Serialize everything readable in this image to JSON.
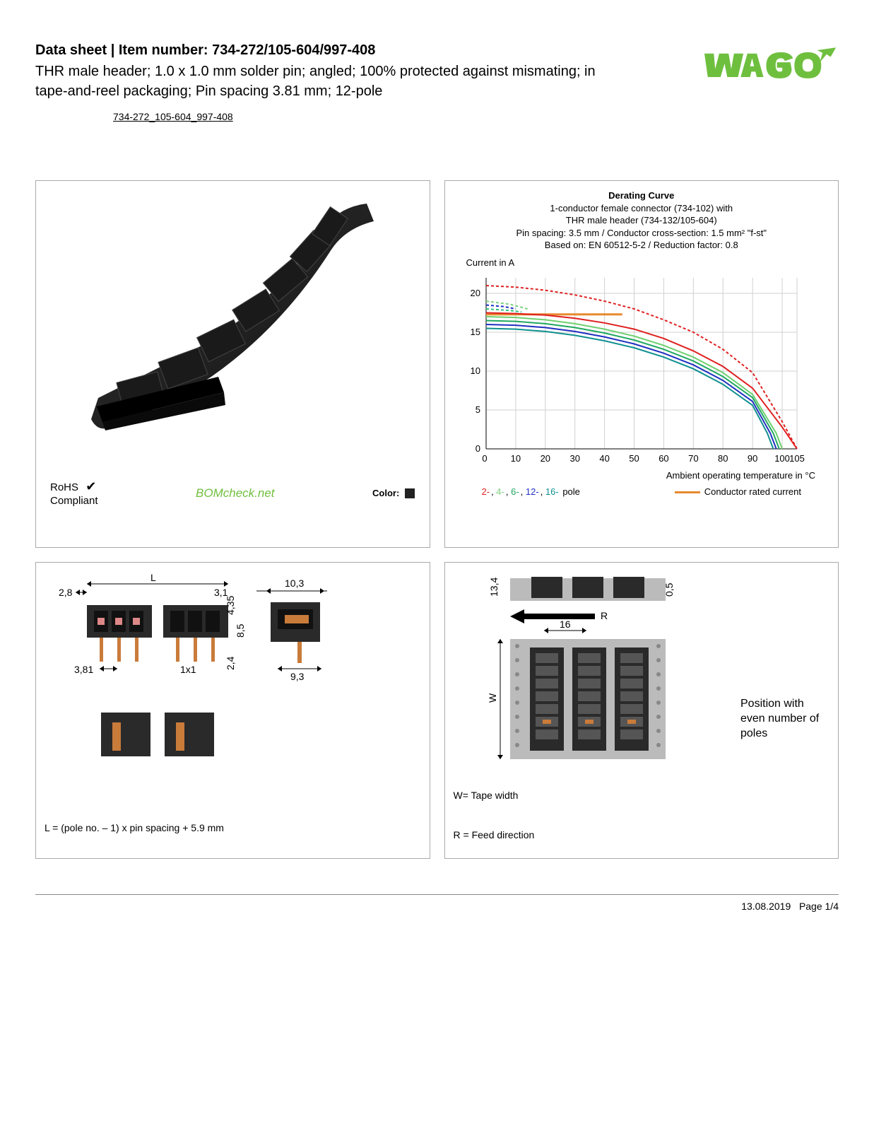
{
  "header": {
    "title_prefix": "Data sheet  |  Item number: ",
    "item_number": "734-272/105-604/997-408",
    "subtitle": "THR male header; 1.0 x 1.0 mm solder pin; angled; 100% protected against mismating; in tape-and-reel packaging; Pin spacing 3.81 mm; 12-pole",
    "part_link": "734-272_105-604_997-408",
    "logo_color": "#6fbf3f"
  },
  "product_panel": {
    "rohs_line1": "RoHS",
    "rohs_line2": "Compliant",
    "bomcheck": "BOMcheck",
    "bomcheck_suffix": ".net",
    "color_label": "Color:",
    "color_hex": "#222222"
  },
  "chart": {
    "title": "Derating Curve",
    "sub1": "1-conductor female connector (734-102) with",
    "sub2": "THR male header (734-132/105-604)",
    "sub3": "Pin spacing: 3.5 mm / Conductor cross-section: 1.5 mm² \"f-st\"",
    "sub4": "Based on: EN 60512-5-2 / Reduction factor: 0.8",
    "y_label": "Current in A",
    "x_label": "Ambient operating temperature in °C",
    "x_ticks": [
      0,
      10,
      20,
      30,
      40,
      50,
      60,
      70,
      80,
      90,
      100,
      105
    ],
    "y_ticks": [
      0,
      5,
      10,
      15,
      20
    ],
    "xlim": [
      0,
      105
    ],
    "ylim": [
      0,
      22
    ],
    "grid_color": "#d0d0d0",
    "background": "#ffffff",
    "series": [
      {
        "name": "2-pole",
        "color": "#e02020",
        "dash": "4,3",
        "points": [
          [
            0,
            21
          ],
          [
            10,
            20.8
          ],
          [
            20,
            20.4
          ],
          [
            30,
            19.8
          ],
          [
            40,
            19
          ],
          [
            50,
            18
          ],
          [
            60,
            16.6
          ],
          [
            70,
            15
          ],
          [
            80,
            12.8
          ],
          [
            90,
            9.8
          ],
          [
            100,
            3.5
          ],
          [
            105,
            0
          ]
        ]
      },
      {
        "name": "2-pole-solid",
        "color": "#e02020",
        "dash": "",
        "points": [
          [
            0,
            17.5
          ],
          [
            10,
            17.4
          ],
          [
            20,
            17.2
          ],
          [
            30,
            16.8
          ],
          [
            40,
            16.2
          ],
          [
            50,
            15.4
          ],
          [
            60,
            14.2
          ],
          [
            70,
            12.6
          ],
          [
            80,
            10.6
          ],
          [
            90,
            7.8
          ],
          [
            100,
            2.8
          ],
          [
            105,
            0
          ]
        ]
      },
      {
        "name": "4-pole",
        "color": "#7fd07f",
        "dash": "4,3",
        "points": [
          [
            0,
            19
          ],
          [
            8,
            18.6
          ],
          [
            14,
            18
          ]
        ]
      },
      {
        "name": "4-pole-solid",
        "color": "#6fd06f",
        "dash": "",
        "points": [
          [
            0,
            17
          ],
          [
            10,
            16.9
          ],
          [
            20,
            16.6
          ],
          [
            30,
            16.1
          ],
          [
            40,
            15.4
          ],
          [
            50,
            14.5
          ],
          [
            60,
            13.3
          ],
          [
            70,
            11.8
          ],
          [
            80,
            9.8
          ],
          [
            90,
            7.0
          ],
          [
            98,
            2
          ],
          [
            100,
            0
          ]
        ]
      },
      {
        "name": "6-pole",
        "color": "#30c080",
        "dash": "4,3",
        "points": [
          [
            0,
            18
          ],
          [
            8,
            17.8
          ],
          [
            12,
            17.6
          ]
        ]
      },
      {
        "name": "6-pole-solid",
        "color": "#20a860",
        "dash": "",
        "points": [
          [
            0,
            16.5
          ],
          [
            10,
            16.4
          ],
          [
            20,
            16.1
          ],
          [
            30,
            15.6
          ],
          [
            40,
            14.9
          ],
          [
            50,
            14
          ],
          [
            60,
            12.8
          ],
          [
            70,
            11.3
          ],
          [
            80,
            9.3
          ],
          [
            90,
            6.6
          ],
          [
            97,
            2
          ],
          [
            99,
            0
          ]
        ]
      },
      {
        "name": "12-pole",
        "color": "#2030c0",
        "dash": "4,3",
        "points": [
          [
            0,
            18.5
          ],
          [
            6,
            18.3
          ],
          [
            10,
            18
          ]
        ]
      },
      {
        "name": "12-pole-solid",
        "color": "#2030c0",
        "dash": "",
        "points": [
          [
            0,
            16
          ],
          [
            10,
            15.9
          ],
          [
            20,
            15.6
          ],
          [
            30,
            15.1
          ],
          [
            40,
            14.4
          ],
          [
            50,
            13.5
          ],
          [
            60,
            12.3
          ],
          [
            70,
            10.8
          ],
          [
            80,
            8.8
          ],
          [
            90,
            6.1
          ],
          [
            96,
            2
          ],
          [
            98,
            0
          ]
        ]
      },
      {
        "name": "16-pole-solid",
        "color": "#109090",
        "dash": "",
        "points": [
          [
            0,
            15.5
          ],
          [
            10,
            15.4
          ],
          [
            20,
            15.1
          ],
          [
            30,
            14.6
          ],
          [
            40,
            13.9
          ],
          [
            50,
            13
          ],
          [
            60,
            11.8
          ],
          [
            70,
            10.3
          ],
          [
            80,
            8.3
          ],
          [
            90,
            5.6
          ],
          [
            95,
            2
          ],
          [
            97,
            0
          ]
        ]
      }
    ],
    "conductor_rated": {
      "color": "#e78a2f",
      "y": 17.3,
      "x_end": 46
    },
    "legend_poles": [
      {
        "label": "2-",
        "color": "#e02020"
      },
      {
        "label": "4-",
        "color": "#7fd07f"
      },
      {
        "label": "6-",
        "color": "#20a860"
      },
      {
        "label": "12-",
        "color": "#2030c0"
      },
      {
        "label": "16-",
        "color": "#109090"
      }
    ],
    "legend_poles_suffix": " pole",
    "legend_conductor": "Conductor rated current"
  },
  "dim_left": {
    "labels": {
      "L": "L",
      "d28": "2,8",
      "d31": "3,1",
      "d103": "10,3",
      "d435": "4,35",
      "d85": "8,5",
      "d381": "3,81",
      "d1x1": "1x1",
      "d24": "2,4",
      "d93": "9,3"
    },
    "caption": "L = (pole no. – 1) x pin spacing + 5.9 mm"
  },
  "dim_right": {
    "labels": {
      "d134": "13,4",
      "d05": "0,5",
      "R": "R",
      "d16": "16",
      "W": "W"
    },
    "w_text": "W= Tape width",
    "r_text": "R = Feed direction",
    "pos_text": "Position with even number of poles"
  },
  "footer": {
    "date": "13.08.2019",
    "page": "Page 1/4"
  }
}
